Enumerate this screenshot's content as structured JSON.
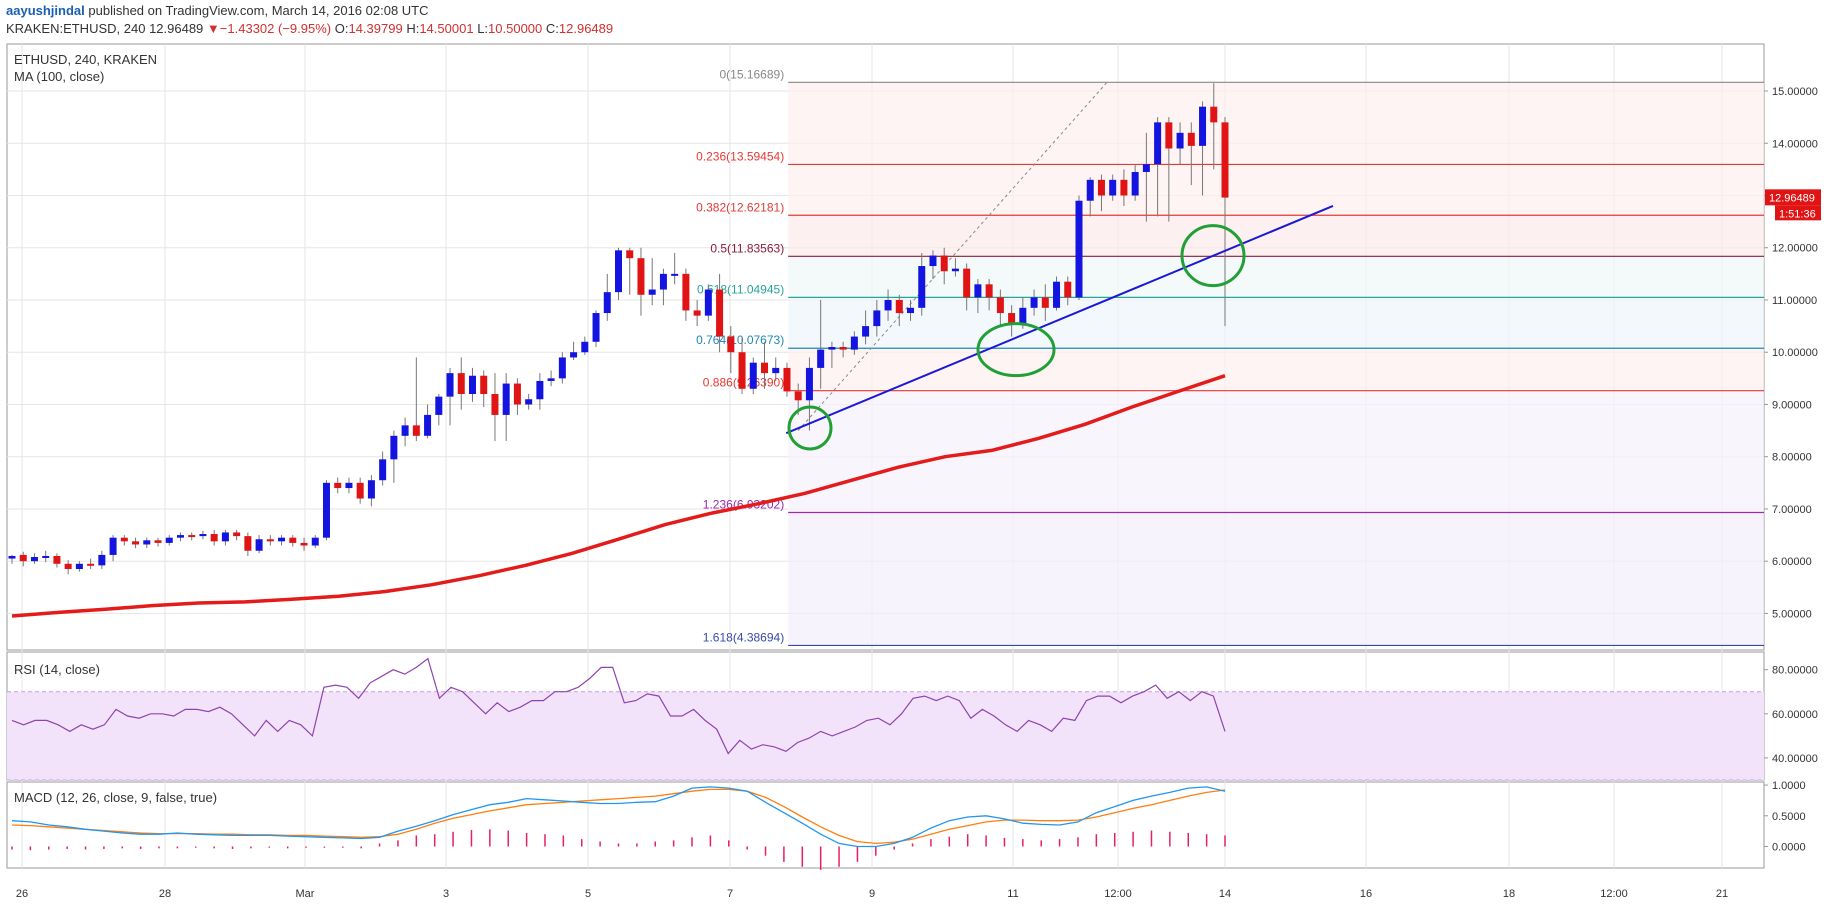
{
  "header": {
    "author": "aayushjindal",
    "published": "published on TradingView.com, March 14, 2016 02:08 UTC",
    "symbol_line": "KRAKEN:ETHUSD, 240",
    "last": "12.96489",
    "change": "−1.43302 (−9.95%)",
    "o_label": "O:",
    "o": "14.39799",
    "h_label": "H:",
    "h": "14.50001",
    "l_label": "L:",
    "l": "10.50000",
    "c_label": "C:",
    "c": "12.96489",
    "down_arrow_icon": "triangle-down-icon",
    "colors": {
      "negative": "#d32f2f",
      "author": "#1a5fb4"
    }
  },
  "chart_data": [
    {
      "type": "candlestick",
      "title": "ETHUSD, 240, KRAKEN",
      "indicator_label": "MA (100, close)",
      "x_tick_labels": [
        "26",
        "28",
        "Mar",
        "3",
        "5",
        "7",
        "9",
        "11",
        "12:00",
        "14",
        "16",
        "18",
        "12:00",
        "21"
      ],
      "y_tick_labels": [
        "15.00000",
        "14.00000",
        "13.00000",
        "12.00000",
        "11.00000",
        "10.00000",
        "9.00000",
        "8.00000",
        "7.00000",
        "6.00000",
        "5.00000"
      ],
      "ylim": [
        4.3,
        15.9
      ],
      "last_price_label": "12.96489",
      "countdown_label": "1:51:36",
      "candles": [
        [
          6.05,
          6.1,
          5.95,
          6.12
        ],
        [
          6.12,
          6.0,
          5.9,
          6.18
        ],
        [
          6.0,
          6.08,
          5.95,
          6.15
        ],
        [
          6.08,
          6.1,
          5.98,
          6.2
        ],
        [
          6.1,
          5.95,
          5.88,
          6.15
        ],
        [
          5.95,
          5.85,
          5.75,
          6.02
        ],
        [
          5.85,
          5.95,
          5.8,
          6.0
        ],
        [
          5.95,
          5.92,
          5.85,
          6.05
        ],
        [
          5.92,
          6.12,
          5.85,
          6.2
        ],
        [
          6.12,
          6.45,
          6.0,
          6.5
        ],
        [
          6.45,
          6.38,
          6.3,
          6.5
        ],
        [
          6.38,
          6.32,
          6.25,
          6.45
        ],
        [
          6.32,
          6.4,
          6.25,
          6.45
        ],
        [
          6.4,
          6.35,
          6.28,
          6.45
        ],
        [
          6.35,
          6.45,
          6.3,
          6.5
        ],
        [
          6.45,
          6.5,
          6.38,
          6.55
        ],
        [
          6.5,
          6.48,
          6.4,
          6.55
        ],
        [
          6.48,
          6.52,
          6.42,
          6.58
        ],
        [
          6.52,
          6.38,
          6.3,
          6.6
        ],
        [
          6.38,
          6.55,
          6.3,
          6.6
        ],
        [
          6.55,
          6.48,
          6.4,
          6.6
        ],
        [
          6.48,
          6.2,
          6.1,
          6.55
        ],
        [
          6.2,
          6.42,
          6.15,
          6.5
        ],
        [
          6.42,
          6.38,
          6.3,
          6.5
        ],
        [
          6.38,
          6.45,
          6.3,
          6.5
        ],
        [
          6.45,
          6.35,
          6.28,
          6.5
        ],
        [
          6.35,
          6.3,
          6.2,
          6.45
        ],
        [
          6.3,
          6.45,
          6.25,
          6.5
        ],
        [
          6.45,
          7.5,
          6.4,
          7.55
        ],
        [
          7.5,
          7.4,
          7.3,
          7.6
        ],
        [
          7.4,
          7.5,
          7.3,
          7.6
        ],
        [
          7.5,
          7.2,
          7.1,
          7.6
        ],
        [
          7.2,
          7.55,
          7.05,
          7.65
        ],
        [
          7.55,
          7.95,
          7.45,
          8.1
        ],
        [
          7.95,
          8.4,
          7.5,
          8.5
        ],
        [
          8.4,
          8.6,
          8.2,
          8.75
        ],
        [
          8.6,
          8.4,
          8.3,
          9.9
        ],
        [
          8.4,
          8.8,
          8.35,
          9.0
        ],
        [
          8.8,
          9.15,
          8.6,
          9.2
        ],
        [
          9.15,
          9.6,
          8.6,
          9.7
        ],
        [
          9.6,
          9.2,
          8.9,
          9.9
        ],
        [
          9.2,
          9.55,
          9.05,
          9.7
        ],
        [
          9.55,
          9.2,
          8.95,
          9.65
        ],
        [
          9.2,
          8.8,
          8.3,
          9.6
        ],
        [
          8.8,
          9.4,
          8.3,
          9.6
        ],
        [
          9.4,
          9.0,
          8.8,
          9.5
        ],
        [
          9.0,
          9.1,
          8.9,
          9.2
        ],
        [
          9.1,
          9.45,
          8.9,
          9.6
        ],
        [
          9.45,
          9.5,
          9.35,
          9.65
        ],
        [
          9.5,
          9.9,
          9.4,
          10.0
        ],
        [
          9.9,
          10.0,
          9.85,
          10.2
        ],
        [
          10.0,
          10.2,
          9.95,
          10.3
        ],
        [
          10.2,
          10.75,
          10.1,
          10.8
        ],
        [
          10.75,
          11.15,
          10.6,
          11.5
        ],
        [
          11.15,
          11.95,
          11.0,
          12.0
        ],
        [
          11.95,
          11.8,
          11.1,
          12.0
        ],
        [
          11.8,
          11.1,
          10.7,
          12.0
        ],
        [
          11.1,
          11.2,
          10.9,
          11.8
        ],
        [
          11.2,
          11.5,
          10.9,
          11.6
        ],
        [
          11.5,
          11.5,
          11.3,
          11.9
        ],
        [
          11.5,
          10.8,
          10.6,
          11.6
        ],
        [
          10.8,
          10.7,
          10.5,
          11.0
        ],
        [
          10.7,
          11.2,
          10.6,
          11.3
        ],
        [
          11.2,
          10.3,
          10.0,
          11.5
        ],
        [
          10.3,
          10.0,
          9.6,
          10.5
        ],
        [
          10.0,
          9.3,
          9.2,
          10.3
        ],
        [
          9.3,
          9.8,
          9.2,
          9.9
        ],
        [
          9.8,
          9.6,
          9.3,
          10.2
        ],
        [
          9.6,
          9.7,
          9.45,
          9.9
        ],
        [
          9.7,
          9.25,
          9.15,
          9.8
        ],
        [
          9.25,
          9.08,
          8.8,
          9.4
        ],
        [
          9.08,
          9.7,
          8.5,
          9.9
        ],
        [
          9.7,
          10.05,
          9.3,
          11.0
        ],
        [
          10.05,
          10.1,
          9.7,
          10.2
        ],
        [
          10.1,
          10.05,
          9.9,
          10.2
        ],
        [
          10.05,
          10.3,
          9.95,
          10.4
        ],
        [
          10.3,
          10.5,
          10.15,
          10.8
        ],
        [
          10.5,
          10.8,
          10.3,
          11.0
        ],
        [
          10.8,
          11.0,
          10.6,
          11.2
        ],
        [
          11.0,
          10.75,
          10.5,
          11.1
        ],
        [
          10.75,
          10.85,
          10.6,
          11.0
        ],
        [
          10.85,
          11.65,
          10.7,
          11.9
        ],
        [
          11.65,
          11.85,
          11.4,
          11.95
        ],
        [
          11.85,
          11.55,
          11.3,
          12.0
        ],
        [
          11.55,
          11.6,
          11.45,
          11.8
        ],
        [
          11.6,
          11.05,
          10.8,
          11.7
        ],
        [
          11.05,
          11.3,
          10.75,
          11.4
        ],
        [
          11.3,
          11.05,
          10.8,
          11.4
        ],
        [
          11.05,
          10.75,
          10.5,
          11.2
        ],
        [
          10.75,
          10.55,
          10.3,
          10.9
        ],
        [
          10.55,
          10.85,
          10.45,
          11.05
        ],
        [
          10.85,
          11.05,
          10.7,
          11.2
        ],
        [
          11.05,
          10.85,
          10.6,
          11.3
        ],
        [
          10.85,
          11.35,
          10.8,
          11.45
        ],
        [
          11.35,
          11.05,
          10.9,
          11.45
        ],
        [
          11.05,
          12.9,
          11.0,
          13.0
        ],
        [
          12.9,
          13.3,
          12.6,
          13.35
        ],
        [
          13.3,
          13.0,
          12.7,
          13.4
        ],
        [
          13.0,
          13.3,
          12.9,
          13.4
        ],
        [
          13.3,
          13.0,
          12.8,
          13.5
        ],
        [
          13.0,
          13.45,
          12.9,
          13.6
        ],
        [
          13.45,
          13.6,
          12.5,
          14.2
        ],
        [
          13.6,
          14.4,
          12.6,
          14.5
        ],
        [
          14.4,
          13.9,
          12.5,
          14.5
        ],
        [
          13.9,
          14.2,
          13.6,
          14.4
        ],
        [
          14.2,
          13.95,
          13.2,
          14.4
        ],
        [
          13.95,
          14.7,
          13.0,
          14.8
        ],
        [
          14.7,
          14.4,
          13.5,
          15.15
        ],
        [
          14.4,
          12.96,
          10.5,
          14.5
        ]
      ],
      "moving_average_100": [
        4.95,
        5.02,
        5.08,
        5.15,
        5.2,
        5.22,
        5.27,
        5.33,
        5.42,
        5.55,
        5.72,
        5.92,
        6.15,
        6.42,
        6.7,
        6.92,
        7.1,
        7.3,
        7.55,
        7.8,
        8.0,
        8.12,
        8.35,
        8.62,
        8.95,
        9.25,
        9.55
      ],
      "fibonacci_levels": [
        {
          "label": "0(15.16689)",
          "value": 15.16689,
          "color": "#888888"
        },
        {
          "label": "0.236(13.59454)",
          "value": 13.59454,
          "color": "#e53935"
        },
        {
          "label": "0.382(12.62181)",
          "value": 12.62181,
          "color": "#e53935"
        },
        {
          "label": "0.5(11.83563)",
          "value": 11.83563,
          "color": "#8b1d3a"
        },
        {
          "label": "0.618(11.04945)",
          "value": 11.04945,
          "color": "#26a69a"
        },
        {
          "label": "0.764(10.07673)",
          "value": 10.07673,
          "color": "#1e88b8"
        },
        {
          "label": "0.886(9.26390)",
          "value": 9.2639,
          "color": "#e53935"
        },
        {
          "label": "1.236(6.93202)",
          "value": 6.93202,
          "color": "#9c27b0"
        },
        {
          "label": "1.618(4.38694)",
          "value": 4.38694,
          "color": "#3949ab"
        }
      ],
      "trendline": {
        "from_value": 8.45,
        "to_value": 12.8,
        "color": "#1a1ad6"
      },
      "colors": {
        "up": "#1414e0",
        "down": "#e01414",
        "ma": "#e31b1b",
        "marker": "#22a037"
      }
    },
    {
      "type": "line",
      "title": "RSI (14, close)",
      "y_tick_labels": [
        "80.00000",
        "60.00000",
        "40.00000"
      ],
      "ylim": [
        30,
        88
      ],
      "band": [
        30,
        70
      ],
      "values": [
        57,
        55,
        57,
        57,
        55,
        52,
        55,
        53,
        55,
        62,
        59,
        58,
        60,
        60,
        59,
        62,
        62,
        61,
        63,
        60,
        55,
        50,
        57,
        52,
        57,
        55,
        50,
        72,
        73,
        72,
        67,
        74,
        77,
        80,
        78,
        81,
        85,
        67,
        72,
        70,
        65,
        60,
        65,
        61,
        63,
        66,
        66,
        70,
        70,
        72,
        76,
        81,
        81,
        65,
        66,
        69,
        68,
        59,
        59,
        62,
        57,
        53,
        42,
        48,
        44,
        46,
        45,
        43,
        47,
        49,
        52,
        50,
        52,
        54,
        57,
        58,
        55,
        60,
        67,
        68,
        66,
        68,
        66,
        58,
        62,
        59,
        55,
        52,
        57,
        55,
        52,
        58,
        57,
        66,
        68,
        68,
        65,
        68,
        70,
        73,
        67,
        70,
        66,
        70,
        68,
        52
      ],
      "color": "#8e44ad"
    },
    {
      "type": "line",
      "title": "MACD (12, 26, close, 9, false, true)",
      "y_tick_labels": [
        "1.0000",
        "0.5000",
        "0.0000"
      ],
      "ylim": [
        -0.35,
        1.05
      ],
      "macd": [
        0.42,
        0.4,
        0.35,
        0.32,
        0.28,
        0.25,
        0.22,
        0.2,
        0.2,
        0.22,
        0.2,
        0.19,
        0.18,
        0.18,
        0.18,
        0.17,
        0.16,
        0.15,
        0.14,
        0.13,
        0.15,
        0.25,
        0.33,
        0.42,
        0.52,
        0.6,
        0.68,
        0.72,
        0.78,
        0.76,
        0.74,
        0.72,
        0.7,
        0.7,
        0.72,
        0.73,
        0.82,
        0.95,
        0.97,
        0.95,
        0.9,
        0.72,
        0.55,
        0.38,
        0.2,
        0.05,
        0.0,
        0.0,
        0.05,
        0.15,
        0.3,
        0.42,
        0.48,
        0.5,
        0.45,
        0.38,
        0.36,
        0.35,
        0.4,
        0.55,
        0.65,
        0.75,
        0.82,
        0.88,
        0.95,
        0.97,
        0.9
      ],
      "signal": [
        0.35,
        0.34,
        0.32,
        0.3,
        0.28,
        0.26,
        0.24,
        0.22,
        0.21,
        0.21,
        0.21,
        0.2,
        0.2,
        0.19,
        0.19,
        0.18,
        0.18,
        0.17,
        0.16,
        0.15,
        0.16,
        0.2,
        0.28,
        0.38,
        0.46,
        0.52,
        0.58,
        0.63,
        0.68,
        0.7,
        0.72,
        0.74,
        0.76,
        0.78,
        0.8,
        0.82,
        0.86,
        0.9,
        0.93,
        0.93,
        0.9,
        0.8,
        0.65,
        0.48,
        0.32,
        0.18,
        0.08,
        0.05,
        0.07,
        0.12,
        0.2,
        0.28,
        0.34,
        0.4,
        0.43,
        0.43,
        0.42,
        0.42,
        0.43,
        0.48,
        0.55,
        0.62,
        0.68,
        0.75,
        0.82,
        0.88,
        0.92
      ],
      "histogram": [
        -0.05,
        -0.06,
        -0.05,
        -0.04,
        -0.05,
        -0.04,
        -0.03,
        -0.04,
        -0.03,
        -0.03,
        -0.02,
        -0.03,
        -0.04,
        -0.03,
        -0.02,
        -0.03,
        -0.02,
        -0.02,
        -0.02,
        -0.03,
        0.05,
        0.1,
        0.18,
        0.2,
        0.24,
        0.27,
        0.28,
        0.26,
        0.22,
        0.2,
        0.18,
        0.12,
        0.08,
        0.05,
        0.05,
        0.08,
        0.1,
        0.15,
        0.18,
        0.1,
        -0.05,
        -0.15,
        -0.25,
        -0.33,
        -0.38,
        -0.33,
        -0.25,
        -0.15,
        -0.05,
        0.05,
        0.12,
        0.16,
        0.2,
        0.18,
        0.14,
        0.12,
        0.1,
        0.12,
        0.15,
        0.2,
        0.22,
        0.24,
        0.26,
        0.24,
        0.22,
        0.2,
        0.18
      ],
      "colors": {
        "macd": "#2196f3",
        "signal": "#ff7f0e",
        "histogram": "#e91e63"
      }
    }
  ]
}
